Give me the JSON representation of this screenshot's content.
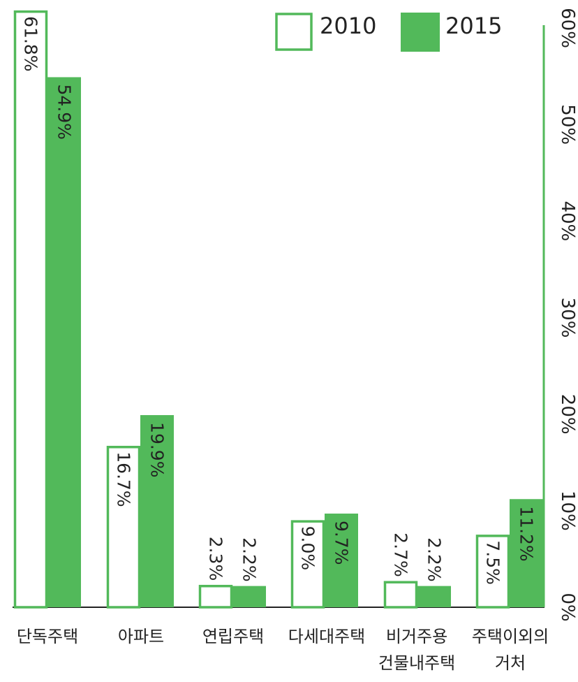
{
  "chart_data": {
    "type": "bar",
    "categories": [
      "단독주택",
      "아파트",
      "연립주택",
      "다세대주택",
      "비거주용\n건물내주택",
      "주택이외의\n거처"
    ],
    "series": [
      {
        "name": "2010",
        "values": [
          61.8,
          16.7,
          2.3,
          9.0,
          2.7,
          7.5
        ],
        "labels": [
          "61.8%",
          "16.7%",
          "2.3%",
          "9.0%",
          "2.7%",
          "7.5%"
        ],
        "style": "outline"
      },
      {
        "name": "2015",
        "values": [
          54.9,
          19.9,
          2.2,
          9.7,
          2.2,
          11.2
        ],
        "labels": [
          "54.9%",
          "19.9%",
          "2.2%",
          "9.7%",
          "2.2%",
          "11.2%"
        ],
        "style": "filled"
      }
    ],
    "ylim": [
      0,
      60
    ],
    "yticks": [
      "0%",
      "10%",
      "20%",
      "30%",
      "40%",
      "50%",
      "60%"
    ],
    "y_axis_side": "right",
    "legend_position": "top-right",
    "grid": false,
    "colors": {
      "series_2010_outline": "#52b95a",
      "series_2015_fill": "#52b95a",
      "axis": "#52b95a"
    }
  }
}
